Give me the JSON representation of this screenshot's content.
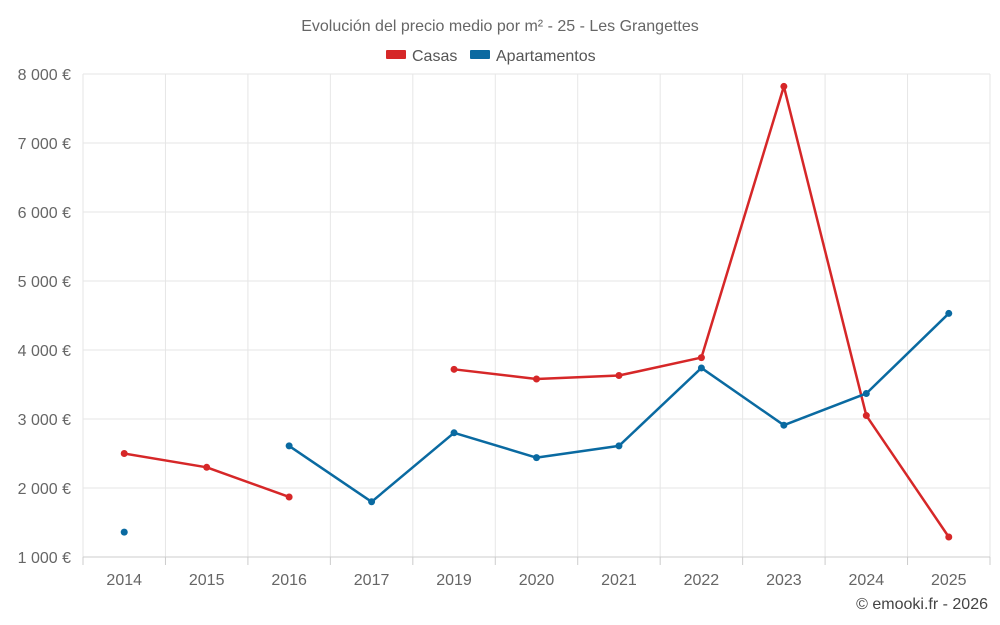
{
  "chart_data": {
    "type": "line",
    "title": "Evolución del precio medio por m² - 25 - Les Grangettes",
    "categories": [
      "2014",
      "2015",
      "2016",
      "2017",
      "2019",
      "2020",
      "2021",
      "2022",
      "2023",
      "2024",
      "2025"
    ],
    "ylim": [
      1000,
      8000
    ],
    "yticks": [
      1000,
      2000,
      3000,
      4000,
      5000,
      6000,
      7000,
      8000
    ],
    "ytick_labels": [
      "1 000 €",
      "2 000 €",
      "3 000 €",
      "4 000 €",
      "5 000 €",
      "6 000 €",
      "7 000 €",
      "8 000 €"
    ],
    "xlabel": "",
    "ylabel": "",
    "grid": true,
    "legend_position": "top-center",
    "series": [
      {
        "name": "Casas",
        "color": "#d62728",
        "values": [
          2500,
          2300,
          1870,
          null,
          3720,
          3580,
          3630,
          3890,
          7820,
          3050,
          1290
        ]
      },
      {
        "name": "Apartamentos",
        "color": "#0a6aa1",
        "values": [
          1360,
          null,
          2610,
          1800,
          2800,
          2440,
          2610,
          3740,
          2910,
          3370,
          4530
        ]
      }
    ],
    "credit": "© emooki.fr - 2026"
  }
}
